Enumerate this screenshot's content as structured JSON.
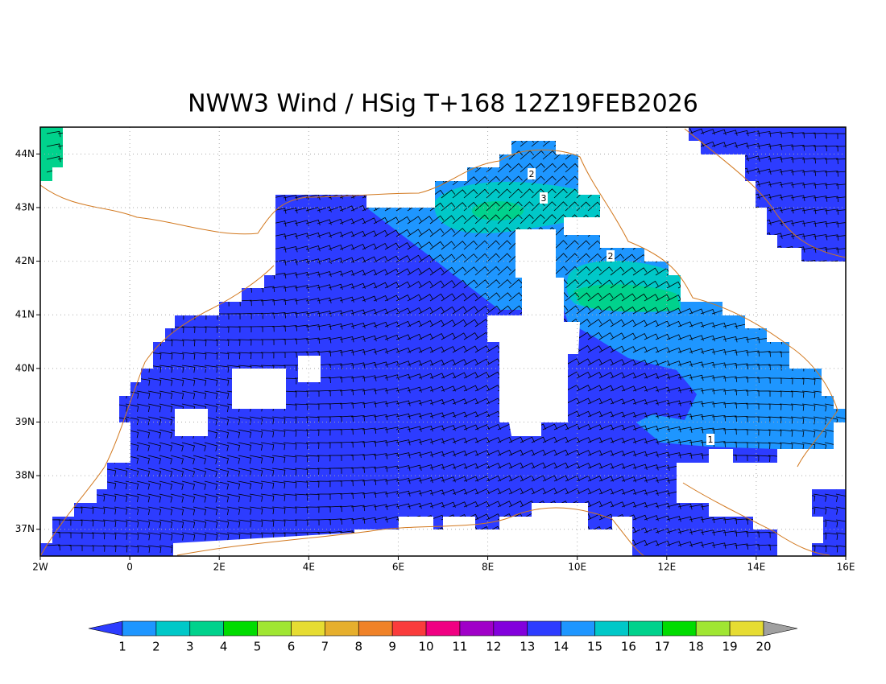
{
  "title": "NWW3 Wind / HSig T+168 12Z19FEB2026",
  "map": {
    "xlim": [
      -2,
      16
    ],
    "ylim": [
      36.5,
      44.5
    ],
    "xticks": [
      {
        "value": -2,
        "label": "2W"
      },
      0,
      {
        "value": 2,
        "label": "2E"
      },
      {
        "value": 4,
        "label": "4E"
      },
      {
        "value": 6,
        "label": "6E"
      },
      {
        "value": 8,
        "label": "8E"
      },
      {
        "value": 10,
        "label": "10E"
      },
      {
        "value": 12,
        "label": "12E"
      },
      {
        "value": 14,
        "label": "14E"
      },
      {
        "value": 16,
        "label": "16E"
      }
    ],
    "yticks": [
      {
        "value": 37,
        "label": "37N"
      },
      {
        "value": 38,
        "label": "38N"
      },
      {
        "value": 39,
        "label": "39N"
      },
      {
        "value": 40,
        "label": "40N"
      },
      {
        "value": 41,
        "label": "41N"
      },
      {
        "value": 42,
        "label": "42N"
      },
      {
        "value": 43,
        "label": "43N"
      },
      {
        "value": 44,
        "label": "44N"
      }
    ],
    "grid": true,
    "contour_labels": [
      2,
      3,
      2,
      1
    ]
  },
  "colorbar": {
    "labels": [
      1,
      2,
      3,
      4,
      5,
      6,
      7,
      8,
      9,
      10,
      11,
      12,
      13,
      14,
      15,
      16,
      17,
      18,
      19,
      20
    ],
    "under_color": "#2d3cff",
    "over_color": "#a0a0a0",
    "colors": [
      "#1e96ff",
      "#00c8c8",
      "#00d28c",
      "#00dc00",
      "#a0e632",
      "#e6dc32",
      "#e6af2d",
      "#f08228",
      "#fa3c3c",
      "#f00082",
      "#a000c8",
      "#8200dc",
      "#2d3cff",
      "#1e96ff",
      "#00c8c8",
      "#00d28c",
      "#00dc00",
      "#a0e632",
      "#e6dc32"
    ]
  }
}
